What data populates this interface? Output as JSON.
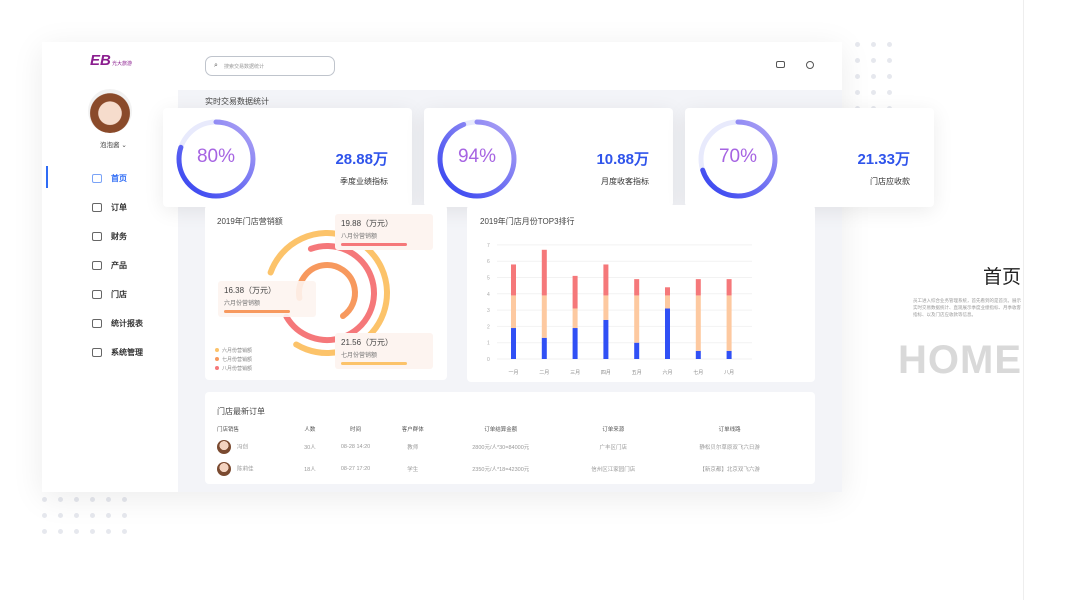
{
  "brand": {
    "logo_text": "EB",
    "logo_sub": "光大旅游"
  },
  "search": {
    "placeholder": "搜索交易数据统计"
  },
  "user": {
    "name": "泡泡酱"
  },
  "sidebar": {
    "items": [
      {
        "label": "首页",
        "icon": "home-icon",
        "active": true
      },
      {
        "label": "订单",
        "icon": "order-icon"
      },
      {
        "label": "财务",
        "icon": "finance-icon"
      },
      {
        "label": "产品",
        "icon": "product-icon"
      },
      {
        "label": "门店",
        "icon": "store-icon"
      },
      {
        "label": "统计报表",
        "icon": "chart-icon"
      },
      {
        "label": "系统管理",
        "icon": "monitor-icon"
      }
    ]
  },
  "section_title": "实时交易数据统计",
  "stats": [
    {
      "percent": "80%",
      "fraction": 0.8,
      "value": "28.88万",
      "label": "季度业绩指标"
    },
    {
      "percent": "94%",
      "fraction": 0.94,
      "value": "10.88万",
      "label": "月度收客指标"
    },
    {
      "percent": "70%",
      "fraction": 0.7,
      "value": "21.33万",
      "label": "门店应收款"
    }
  ],
  "colors": {
    "accent": "#2f54eb",
    "purple": "#a664e2",
    "yellow": "#fcc36a",
    "orange": "#f7995e",
    "red": "#f5787a",
    "peach": "#fdc9a0",
    "blue": "#3050f5"
  },
  "chart_data": [
    {
      "type": "pie",
      "title": "2019年门店营销额",
      "series": [
        {
          "name": "六月份营销额",
          "value": 16.38,
          "unit": "（万元）"
        },
        {
          "name": "七月份营销额",
          "value": 21.56,
          "unit": "（万元）"
        },
        {
          "name": "八月份营销额",
          "value": 19.88,
          "unit": "（万元）"
        }
      ],
      "legend": [
        "六月份营销额",
        "七月份营销额",
        "八月份营销额"
      ]
    },
    {
      "type": "bar",
      "stacked": true,
      "title": "2019年门店月份TOP3排行",
      "categories": [
        "一月",
        "二月",
        "三月",
        "四月",
        "五月",
        "六月",
        "七月",
        "八月"
      ],
      "yticks": [
        "0",
        "1",
        "2",
        "3",
        "4",
        "5",
        "6",
        "7"
      ],
      "ylim": [
        0,
        7
      ],
      "series": [
        {
          "name": "blue",
          "values": [
            1.9,
            1.3,
            1.9,
            2.4,
            1.0,
            3.1,
            0.5,
            0.5
          ]
        },
        {
          "name": "peach",
          "values": [
            2.0,
            2.6,
            1.2,
            1.5,
            2.9,
            0.8,
            3.4,
            3.4
          ]
        },
        {
          "name": "red",
          "values": [
            1.9,
            2.8,
            2.0,
            1.9,
            1.0,
            0.5,
            1.0,
            1.0
          ]
        }
      ]
    }
  ],
  "orders": {
    "title": "门店最新订单",
    "columns": [
      "门店销售",
      "人数",
      "时间",
      "客户群体",
      "订单结算金额",
      "订单来源",
      "订单线路"
    ],
    "rows": [
      [
        "冯创",
        "30人",
        "08-28 14:20",
        "教师",
        "2800元/人*30=84000元",
        "广丰区门店",
        "静松贝尔草原双飞六日游"
      ],
      [
        "陈莉佳",
        "18人",
        "08-27 17:20",
        "学生",
        "2350元/人*18=42300元",
        "信州区江家园门店",
        "【新京都】北京双飞六游"
      ]
    ]
  },
  "promo": {
    "title": "首页",
    "desc": "员工进入综合业务管理系统，首先看到的是首页。展示实时交易数据统计、直观展示季度业绩指标、月季收客指标、以及门店应收款等信息。",
    "watermark": "HOME"
  }
}
